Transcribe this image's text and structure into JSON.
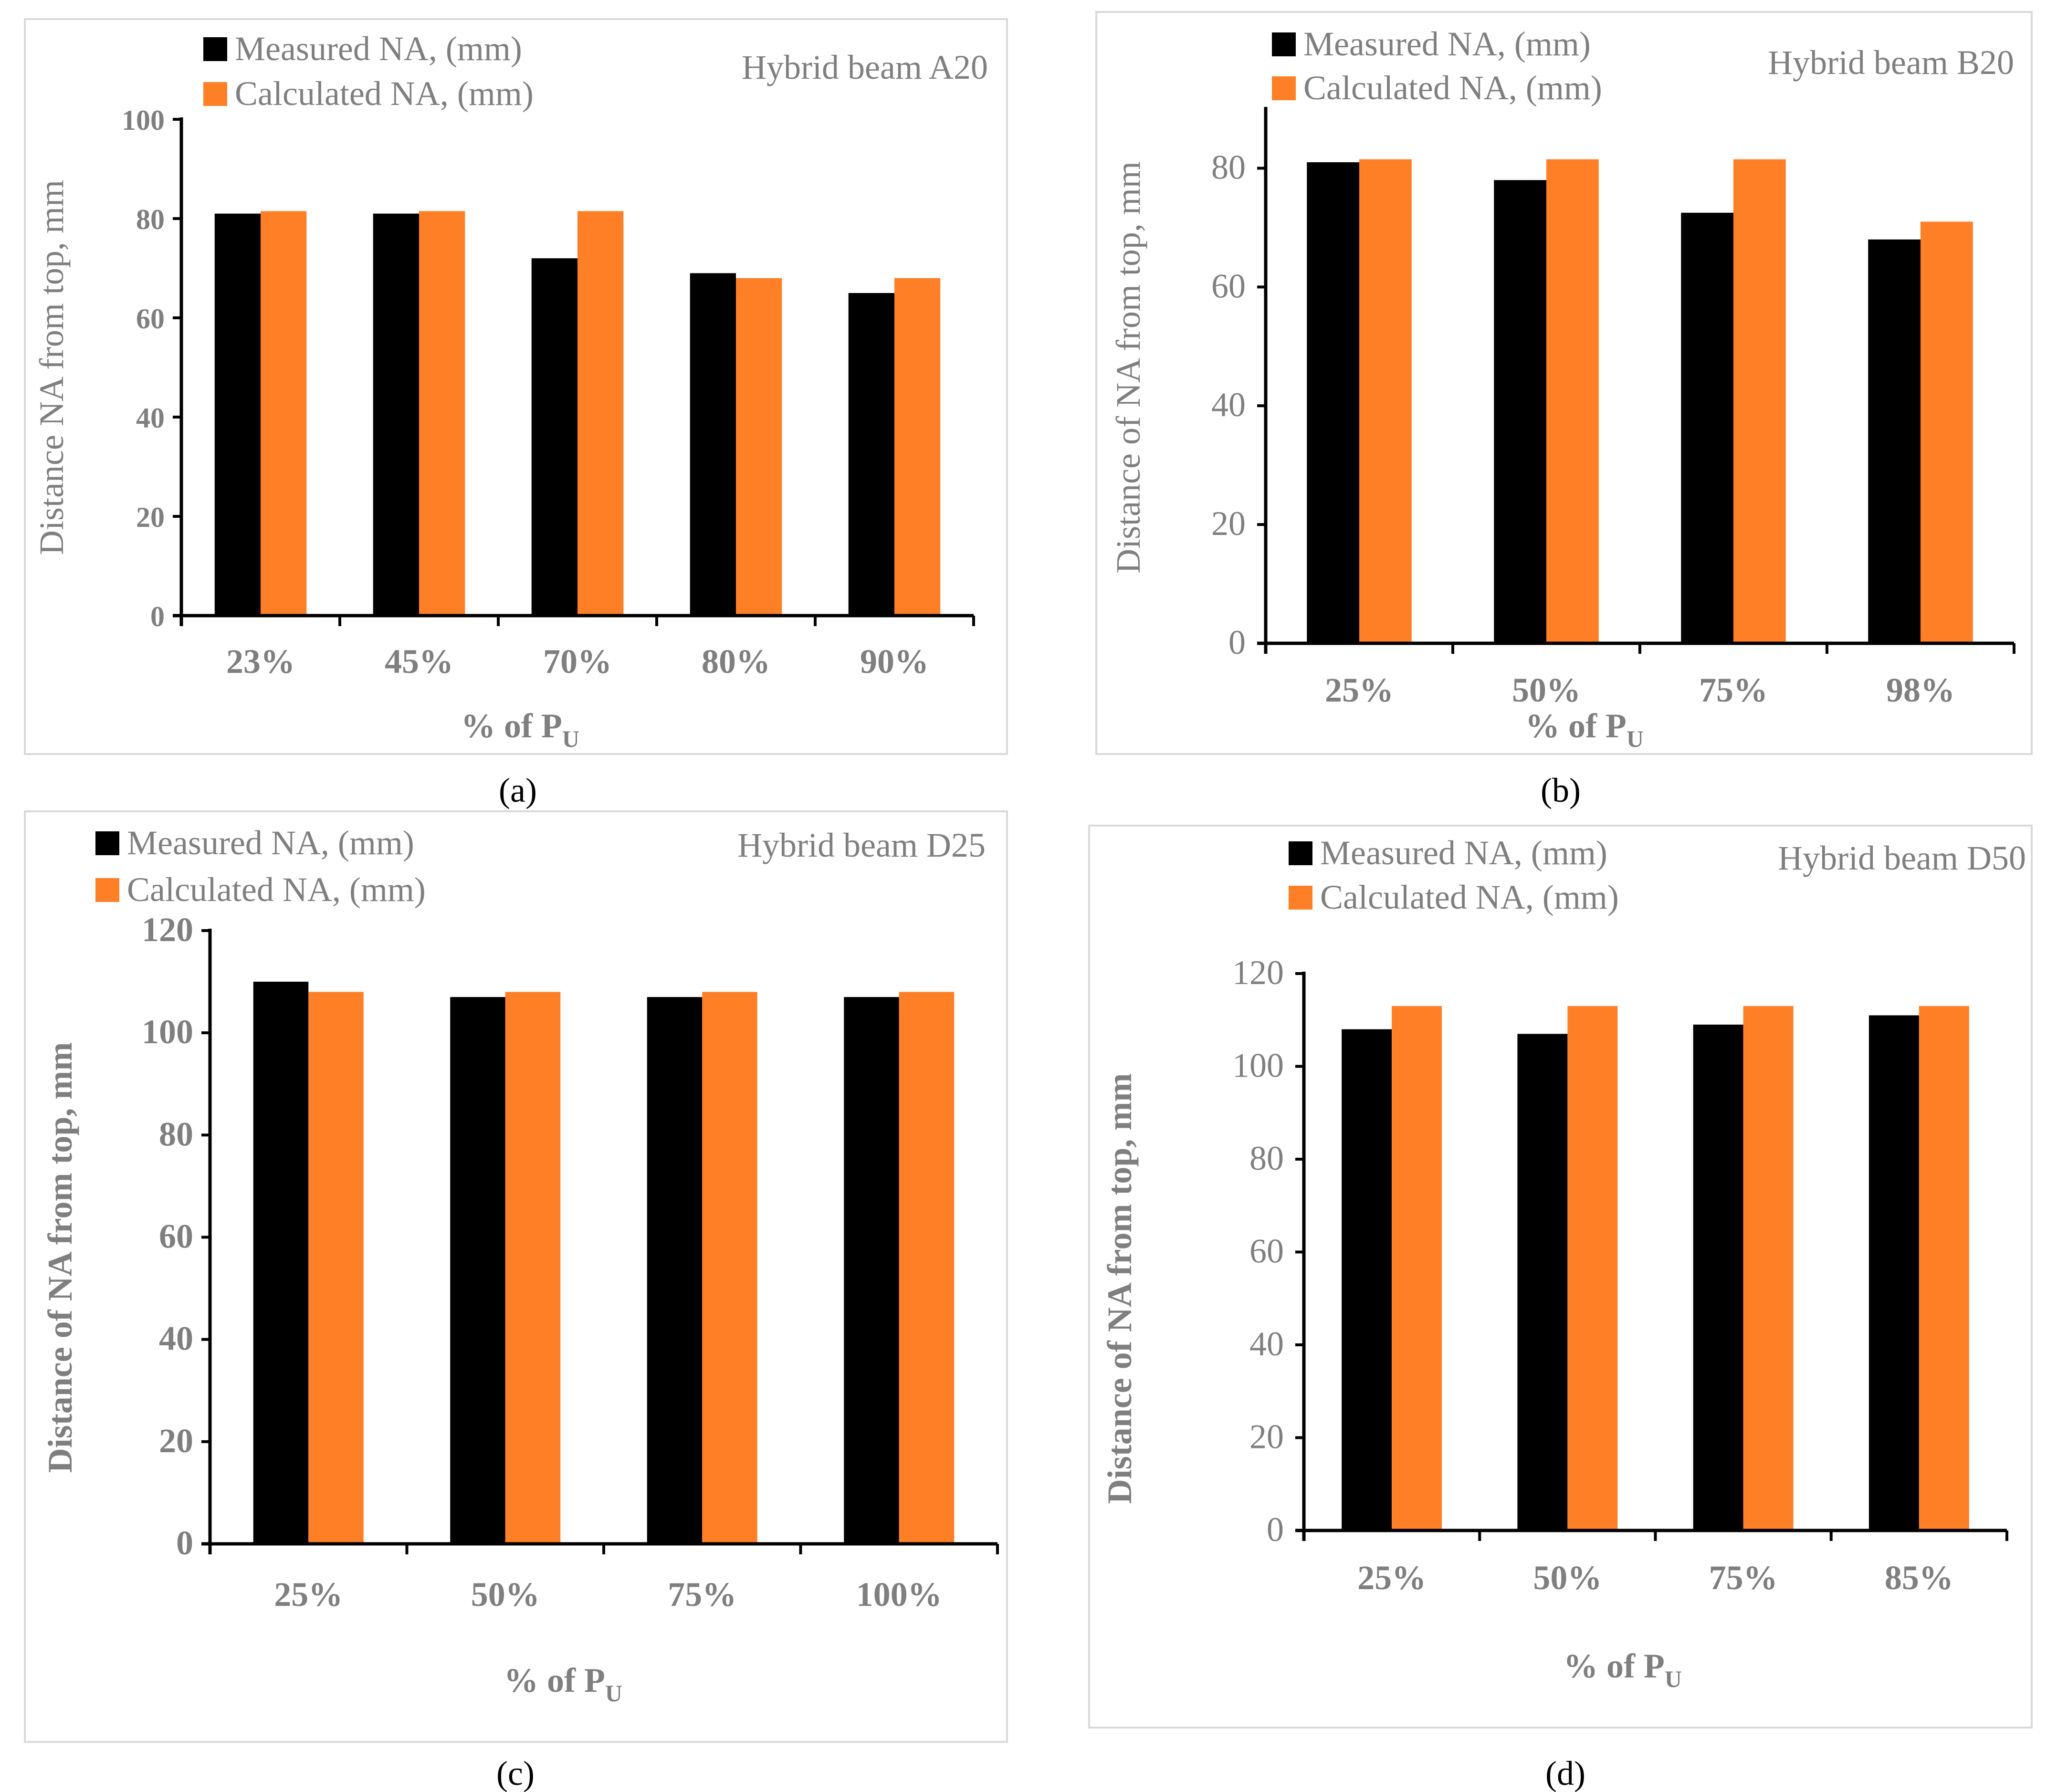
{
  "colors": {
    "measured": "#000000",
    "calculated": "#ff7f27",
    "axis_text": "#7f7f7f",
    "axis_line": "#000000"
  },
  "chart_data": [
    {
      "type": "bar",
      "title": "Hybrid beam A20",
      "panel_label": "(a)",
      "categories": [
        "23%",
        "45%",
        "70%",
        "80%",
        "90%"
      ],
      "series": [
        {
          "name": "Measured NA, (mm)",
          "values": [
            81,
            81,
            72,
            69,
            65
          ]
        },
        {
          "name": "Calculated NA, (mm)",
          "values": [
            81.5,
            81.5,
            81.5,
            68,
            68
          ]
        }
      ],
      "xlabel": "% of P",
      "xlabel_sub": "U",
      "ylabel": "Distance NA from top, mm",
      "ylim": [
        0,
        100
      ],
      "yticks": [
        0,
        20,
        40,
        60,
        80,
        100
      ],
      "legend": "top-left"
    },
    {
      "type": "bar",
      "title": "Hybrid beam B20",
      "panel_label": "(b)",
      "categories": [
        "25%",
        "50%",
        "75%",
        "98%"
      ],
      "series": [
        {
          "name": "Measured NA, (mm)",
          "values": [
            81,
            78,
            72.5,
            68
          ]
        },
        {
          "name": "Calculated NA, (mm)",
          "values": [
            81.5,
            81.5,
            81.5,
            71
          ]
        }
      ],
      "xlabel": "% of P",
      "xlabel_sub": "U",
      "ylabel": "Distance of NA from top, mm",
      "ylim": [
        0,
        90
      ],
      "yticks": [
        0,
        20,
        40,
        60,
        80
      ],
      "legend": "top-left"
    },
    {
      "type": "bar",
      "title": "Hybrid beam D25",
      "panel_label": "(c)",
      "categories": [
        "25%",
        "50%",
        "75%",
        "100%"
      ],
      "series": [
        {
          "name": "Measured NA, (mm)",
          "values": [
            110,
            107,
            107,
            107
          ]
        },
        {
          "name": "Calculated NA, (mm)",
          "values": [
            108,
            108,
            108,
            108
          ]
        }
      ],
      "xlabel": "% of P",
      "xlabel_sub": "U",
      "ylabel": "Distance of NA from top, mm",
      "ylim": [
        0,
        120
      ],
      "yticks": [
        0,
        20,
        40,
        60,
        80,
        100,
        120
      ],
      "legend": "top-left"
    },
    {
      "type": "bar",
      "title": "Hybrid beam D50",
      "panel_label": "(d)",
      "categories": [
        "25%",
        "50%",
        "75%",
        "85%"
      ],
      "series": [
        {
          "name": "Measured NA, (mm)",
          "values": [
            108,
            107,
            109,
            111
          ]
        },
        {
          "name": "Calculated NA, (mm)",
          "values": [
            113,
            113,
            113,
            113
          ]
        }
      ],
      "xlabel": "% of P",
      "xlabel_sub": "U",
      "ylabel": "Distance of NA from top, mm",
      "ylim": [
        0,
        120
      ],
      "yticks": [
        0,
        20,
        40,
        60,
        80,
        100,
        120
      ],
      "legend": "top-left"
    }
  ]
}
